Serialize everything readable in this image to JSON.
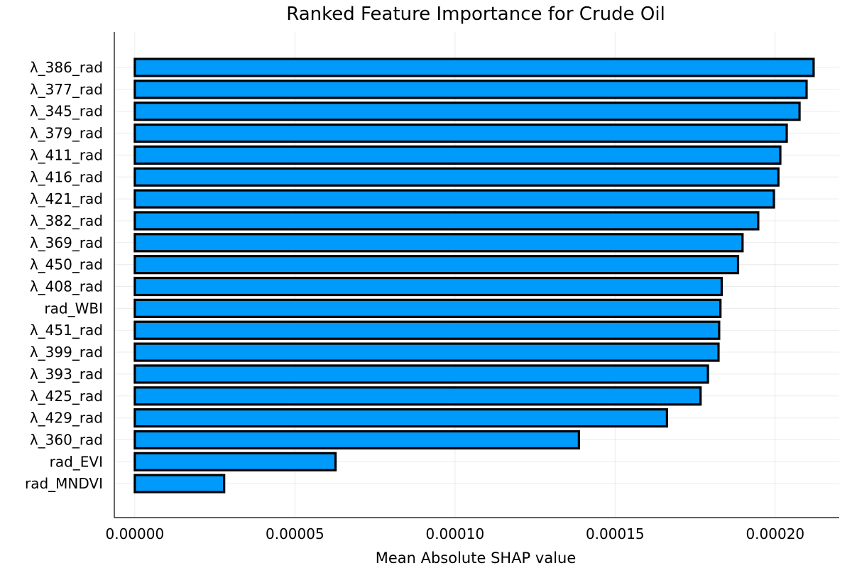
{
  "chart_data": {
    "type": "bar",
    "orientation": "horizontal",
    "title": "Ranked Feature Importance for Crude Oil",
    "xlabel": "Mean Absolute SHAP value",
    "ylabel": "",
    "xlim": [
      -6.4e-06,
      0.00022
    ],
    "x_ticks": [
      "0.00000",
      "0.00005",
      "0.00010",
      "0.00015",
      "0.00020"
    ],
    "x_tick_values": [
      0.0,
      5e-05,
      0.0001,
      0.00015,
      0.0002
    ],
    "grid": true,
    "legend": "none",
    "bar_color": "#009AFA",
    "categories": [
      "λ_386_rad",
      "λ_377_rad",
      "λ_345_rad",
      "λ_379_rad",
      "λ_411_rad",
      "λ_416_rad",
      "λ_421_rad",
      "λ_382_rad",
      "λ_369_rad",
      "λ_450_rad",
      "λ_408_rad",
      "rad_WBI",
      "λ_451_rad",
      "λ_399_rad",
      "λ_393_rad",
      "λ_425_rad",
      "λ_429_rad",
      "λ_360_rad",
      "rad_EVI",
      "rad_MNDVI"
    ],
    "values": [
      0.000212,
      0.0002098,
      0.0002076,
      0.0002036,
      0.0002016,
      0.000201,
      0.0001996,
      0.0001947,
      0.0001898,
      0.0001884,
      0.0001833,
      0.0001829,
      0.0001825,
      0.0001823,
      0.000179,
      0.0001767,
      0.0001662,
      0.0001387,
      6.27e-05,
      2.79e-05
    ]
  }
}
